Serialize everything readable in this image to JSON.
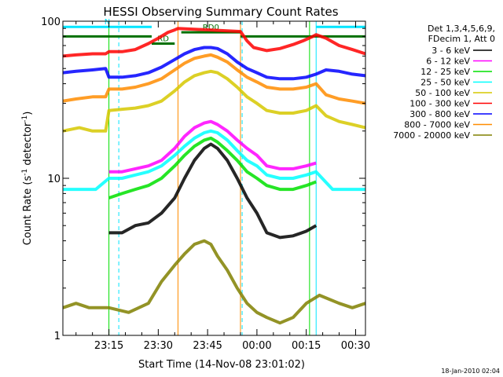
{
  "chart_data": {
    "type": "line",
    "title": "HESSI Observing Summary Count Rates",
    "xlabel": "Start Time (14-Nov-08 23:01:02)",
    "ylabel": "Count Rate (s",
    "ylabel_sup1": "-1",
    "ylabel_mid": " detector",
    "ylabel_sup2": "-1",
    "ylabel_end": ")",
    "y_scale": "log",
    "ylim": [
      1,
      100
    ],
    "xlim_minutes": [
      0,
      92
    ],
    "x_ticks": [
      {
        "m": 14,
        "label": "23:15"
      },
      {
        "m": 29,
        "label": "23:30"
      },
      {
        "m": 44,
        "label": "23:45"
      },
      {
        "m": 59,
        "label": "00:00"
      },
      {
        "m": 74,
        "label": "00:15"
      },
      {
        "m": 89,
        "label": "00:30"
      }
    ],
    "y_ticks": [
      {
        "v": 1,
        "label": "1"
      },
      {
        "v": 10,
        "label": "10"
      },
      {
        "v": 100,
        "label": "100"
      }
    ],
    "legend_header": [
      "Det 1,3,4,5,6,9,",
      "FDecim 1, Att 0"
    ],
    "legend_placement": "right",
    "series": [
      {
        "name": "3 - 6 keV",
        "color": "#000000",
        "points": [
          [
            14,
            4.5
          ],
          [
            18,
            4.5
          ],
          [
            22,
            5
          ],
          [
            26,
            5.2
          ],
          [
            30,
            6
          ],
          [
            34,
            7.5
          ],
          [
            37,
            10
          ],
          [
            40,
            13
          ],
          [
            43,
            15.5
          ],
          [
            45,
            16.5
          ],
          [
            47,
            15.5
          ],
          [
            50,
            13
          ],
          [
            53,
            10
          ],
          [
            56,
            7.5
          ],
          [
            59,
            6
          ],
          [
            62,
            4.5
          ],
          [
            66,
            4.2
          ],
          [
            70,
            4.3
          ],
          [
            74,
            4.6
          ],
          [
            77,
            5
          ]
        ]
      },
      {
        "name": "6 - 12 keV",
        "color": "#ff00ff",
        "points": [
          [
            14,
            11
          ],
          [
            18,
            11
          ],
          [
            22,
            11.5
          ],
          [
            26,
            12
          ],
          [
            30,
            13
          ],
          [
            34,
            15.5
          ],
          [
            37,
            18.5
          ],
          [
            40,
            21
          ],
          [
            43,
            22.5
          ],
          [
            45,
            23
          ],
          [
            47,
            22
          ],
          [
            50,
            20
          ],
          [
            53,
            17.5
          ],
          [
            56,
            15.5
          ],
          [
            59,
            14
          ],
          [
            62,
            12
          ],
          [
            66,
            11.5
          ],
          [
            70,
            11.5
          ],
          [
            74,
            12
          ],
          [
            77,
            12.5
          ]
        ]
      },
      {
        "name": "12 - 25 keV",
        "color": "#00e000",
        "points": [
          [
            14,
            7.5
          ],
          [
            18,
            8
          ],
          [
            22,
            8.5
          ],
          [
            26,
            9
          ],
          [
            30,
            10
          ],
          [
            34,
            12
          ],
          [
            37,
            14
          ],
          [
            40,
            16
          ],
          [
            43,
            17.5
          ],
          [
            45,
            18
          ],
          [
            47,
            17
          ],
          [
            50,
            15
          ],
          [
            53,
            13
          ],
          [
            56,
            11
          ],
          [
            59,
            10
          ],
          [
            62,
            9
          ],
          [
            66,
            8.5
          ],
          [
            70,
            8.5
          ],
          [
            74,
            9
          ],
          [
            77,
            9.5
          ]
        ]
      },
      {
        "name": "25 - 50 keV",
        "color": "#00ffff",
        "points": [
          [
            0,
            8.5
          ],
          [
            6,
            8.5
          ],
          [
            10,
            8.5
          ],
          [
            14,
            10
          ],
          [
            18,
            10
          ],
          [
            22,
            10.5
          ],
          [
            26,
            11
          ],
          [
            30,
            12
          ],
          [
            34,
            14
          ],
          [
            37,
            16
          ],
          [
            40,
            18
          ],
          [
            43,
            19.5
          ],
          [
            45,
            20
          ],
          [
            47,
            19.5
          ],
          [
            50,
            17.5
          ],
          [
            53,
            15
          ],
          [
            56,
            13
          ],
          [
            59,
            12
          ],
          [
            62,
            10.5
          ],
          [
            66,
            10
          ],
          [
            70,
            10
          ],
          [
            74,
            10.5
          ],
          [
            77,
            11
          ],
          [
            82,
            8.5
          ],
          [
            88,
            8.5
          ],
          [
            92,
            8.5
          ]
        ]
      },
      {
        "name": "50 - 100 keV",
        "color": "#d6c800",
        "points": [
          [
            0,
            20
          ],
          [
            5,
            21
          ],
          [
            9,
            20
          ],
          [
            13,
            20
          ],
          [
            14,
            27
          ],
          [
            18,
            27.5
          ],
          [
            22,
            28
          ],
          [
            26,
            29
          ],
          [
            30,
            31
          ],
          [
            34,
            36
          ],
          [
            37,
            41
          ],
          [
            40,
            45
          ],
          [
            43,
            47
          ],
          [
            45,
            48
          ],
          [
            47,
            47
          ],
          [
            50,
            43
          ],
          [
            53,
            38
          ],
          [
            56,
            33
          ],
          [
            59,
            30
          ],
          [
            62,
            27
          ],
          [
            66,
            26
          ],
          [
            70,
            26
          ],
          [
            74,
            27
          ],
          [
            77,
            29
          ],
          [
            80,
            25
          ],
          [
            84,
            23
          ],
          [
            88,
            22
          ],
          [
            92,
            21
          ]
        ]
      },
      {
        "name": "100 - 300 keV",
        "color": "#ff0000",
        "points": [
          [
            0,
            60
          ],
          [
            4,
            61
          ],
          [
            9,
            62
          ],
          [
            13,
            62
          ],
          [
            14,
            64
          ],
          [
            18,
            64
          ],
          [
            22,
            66
          ],
          [
            26,
            72
          ],
          [
            29,
            78
          ],
          [
            32,
            85
          ],
          [
            34,
            88
          ],
          [
            35,
            90
          ],
          [
            54,
            86
          ],
          [
            56,
            75
          ],
          [
            58,
            68
          ],
          [
            62,
            65
          ],
          [
            66,
            67
          ],
          [
            70,
            71
          ],
          [
            73,
            75
          ],
          [
            76,
            80
          ],
          [
            77,
            82
          ],
          [
            80,
            78
          ],
          [
            84,
            70
          ],
          [
            88,
            66
          ],
          [
            92,
            62
          ]
        ]
      },
      {
        "name": "300 - 800 keV",
        "color": "#0000ff",
        "points": [
          [
            0,
            47
          ],
          [
            4,
            48
          ],
          [
            9,
            49
          ],
          [
            13,
            50
          ],
          [
            14,
            44
          ],
          [
            18,
            44
          ],
          [
            22,
            45
          ],
          [
            26,
            47
          ],
          [
            30,
            51
          ],
          [
            34,
            57
          ],
          [
            37,
            62
          ],
          [
            40,
            66
          ],
          [
            43,
            68
          ],
          [
            45,
            68
          ],
          [
            47,
            67
          ],
          [
            50,
            62
          ],
          [
            53,
            55
          ],
          [
            56,
            50
          ],
          [
            59,
            47
          ],
          [
            62,
            44
          ],
          [
            66,
            43
          ],
          [
            70,
            43
          ],
          [
            74,
            44
          ],
          [
            77,
            46
          ],
          [
            80,
            49
          ],
          [
            84,
            48
          ],
          [
            88,
            46
          ],
          [
            92,
            45
          ]
        ]
      },
      {
        "name": "800 - 7000 keV",
        "color": "#ff8c00",
        "points": [
          [
            0,
            31
          ],
          [
            4,
            32
          ],
          [
            9,
            33
          ],
          [
            13,
            33
          ],
          [
            14,
            37
          ],
          [
            18,
            37
          ],
          [
            22,
            38
          ],
          [
            26,
            40
          ],
          [
            30,
            43
          ],
          [
            34,
            49
          ],
          [
            37,
            54
          ],
          [
            40,
            58
          ],
          [
            43,
            60
          ],
          [
            45,
            61
          ],
          [
            47,
            59
          ],
          [
            50,
            55
          ],
          [
            53,
            49
          ],
          [
            56,
            44
          ],
          [
            59,
            41
          ],
          [
            62,
            38
          ],
          [
            66,
            37
          ],
          [
            70,
            37
          ],
          [
            74,
            38
          ],
          [
            77,
            40
          ],
          [
            80,
            34
          ],
          [
            84,
            32
          ],
          [
            88,
            31
          ],
          [
            92,
            30
          ]
        ]
      },
      {
        "name": "7000 - 20000 keV",
        "color": "#808000",
        "points": [
          [
            0,
            1.5
          ],
          [
            4,
            1.6
          ],
          [
            8,
            1.5
          ],
          [
            14,
            1.5
          ],
          [
            20,
            1.4
          ],
          [
            26,
            1.6
          ],
          [
            30,
            2.2
          ],
          [
            34,
            2.8
          ],
          [
            37,
            3.3
          ],
          [
            40,
            3.8
          ],
          [
            43,
            4.0
          ],
          [
            45,
            3.8
          ],
          [
            47,
            3.2
          ],
          [
            50,
            2.6
          ],
          [
            53,
            2.0
          ],
          [
            56,
            1.6
          ],
          [
            59,
            1.4
          ],
          [
            62,
            1.3
          ],
          [
            66,
            1.2
          ],
          [
            70,
            1.3
          ],
          [
            74,
            1.6
          ],
          [
            78,
            1.8
          ],
          [
            84,
            1.6
          ],
          [
            88,
            1.5
          ],
          [
            92,
            1.6
          ]
        ]
      }
    ],
    "annotations": [
      {
        "label": "N",
        "color": "#00e5ff",
        "x_start": 0,
        "x_end": 27,
        "y": 92
      },
      {
        "label": "RD",
        "color": "#007000",
        "x_start": 27,
        "x_end": 34,
        "y": 72
      },
      {
        "label": "RD0",
        "color": "#007000",
        "x_start": 36,
        "x_end": 54,
        "y": 85
      },
      {
        "label": "",
        "color": "#007000",
        "x_start": 0,
        "x_end": 27,
        "y": 80
      },
      {
        "label": "",
        "color": "#007000",
        "x_start": 54,
        "x_end": 92,
        "y": 80
      },
      {
        "label": "",
        "color": "#00e5ff",
        "x_start": 77,
        "x_end": 92,
        "y": 92
      }
    ],
    "vlines": [
      {
        "m": 0,
        "color": "#00e5ff",
        "style": "solid"
      },
      {
        "m": 14,
        "color": "#00e000",
        "style": "solid"
      },
      {
        "m": 17,
        "color": "#00e5ff",
        "style": "dashed"
      },
      {
        "m": 35,
        "color": "#ff8c00",
        "style": "solid"
      },
      {
        "m": 54,
        "color": "#ff8c00",
        "style": "solid"
      },
      {
        "m": 54.5,
        "color": "#00e5ff",
        "style": "dashed"
      },
      {
        "m": 75,
        "color": "#00e000",
        "style": "solid"
      },
      {
        "m": 77,
        "color": "#00e5ff",
        "style": "solid"
      },
      {
        "m": 92,
        "color": "#00e5ff",
        "style": "dashed"
      }
    ],
    "footer_text": "18-Jan-2010 02:04"
  }
}
